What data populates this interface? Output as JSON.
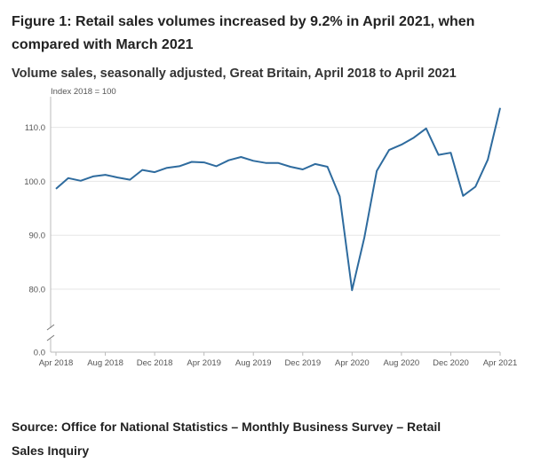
{
  "title": "Figure 1: Retail sales volumes increased by 9.2% in April 2021, when compared with March 2021",
  "subtitle": "Volume sales, seasonally adjusted, Great Britain, April 2018 to April 2021",
  "source": "Source: Office for National Statistics – Monthly Business Survey – Retail Sales Inquiry",
  "colors": {
    "line": "#2e6b9e",
    "grid": "#e6e6e6",
    "axis": "#bbbbbb"
  },
  "chart_data": {
    "type": "line",
    "ylabel": "Index 2018 = 100",
    "ylim": [
      0,
      114
    ],
    "axis_break": true,
    "grid": true,
    "yticks": [
      {
        "value": 0,
        "label": "0.0"
      },
      {
        "value": 80,
        "label": "80.0"
      },
      {
        "value": 90,
        "label": "90.0"
      },
      {
        "value": 100,
        "label": "100.0"
      },
      {
        "value": 110,
        "label": "110.0"
      }
    ],
    "xticks": [
      {
        "index": 0,
        "label": "Apr 2018"
      },
      {
        "index": 4,
        "label": "Aug 2018"
      },
      {
        "index": 8,
        "label": "Dec 2018"
      },
      {
        "index": 12,
        "label": "Apr 2019"
      },
      {
        "index": 16,
        "label": "Aug 2019"
      },
      {
        "index": 20,
        "label": "Dec 2019"
      },
      {
        "index": 24,
        "label": "Apr 2020"
      },
      {
        "index": 28,
        "label": "Aug 2020"
      },
      {
        "index": 32,
        "label": "Dec 2020"
      },
      {
        "index": 36,
        "label": "Apr 2021"
      }
    ],
    "x": [
      "Apr 2018",
      "May 2018",
      "Jun 2018",
      "Jul 2018",
      "Aug 2018",
      "Sep 2018",
      "Oct 2018",
      "Nov 2018",
      "Dec 2018",
      "Jan 2019",
      "Feb 2019",
      "Mar 2019",
      "Apr 2019",
      "May 2019",
      "Jun 2019",
      "Jul 2019",
      "Aug 2019",
      "Sep 2019",
      "Oct 2019",
      "Nov 2019",
      "Dec 2019",
      "Jan 2020",
      "Feb 2020",
      "Mar 2020",
      "Apr 2020",
      "May 2020",
      "Jun 2020",
      "Jul 2020",
      "Aug 2020",
      "Sep 2020",
      "Oct 2020",
      "Nov 2020",
      "Dec 2020",
      "Jan 2021",
      "Feb 2021",
      "Mar 2021",
      "Apr 2021"
    ],
    "series": [
      {
        "values": [
          98.6,
          100.6,
          100.1,
          100.9,
          101.2,
          100.7,
          100.3,
          102.1,
          101.7,
          102.5,
          102.8,
          103.6,
          103.5,
          102.8,
          103.9,
          104.5,
          103.8,
          103.4,
          103.4,
          102.7,
          102.2,
          103.2,
          102.7,
          97.2,
          79.8,
          89.6,
          101.9,
          105.8,
          106.8,
          108.1,
          109.8,
          104.9,
          105.3,
          97.3,
          99.0,
          104.0,
          113.6
        ]
      }
    ]
  }
}
